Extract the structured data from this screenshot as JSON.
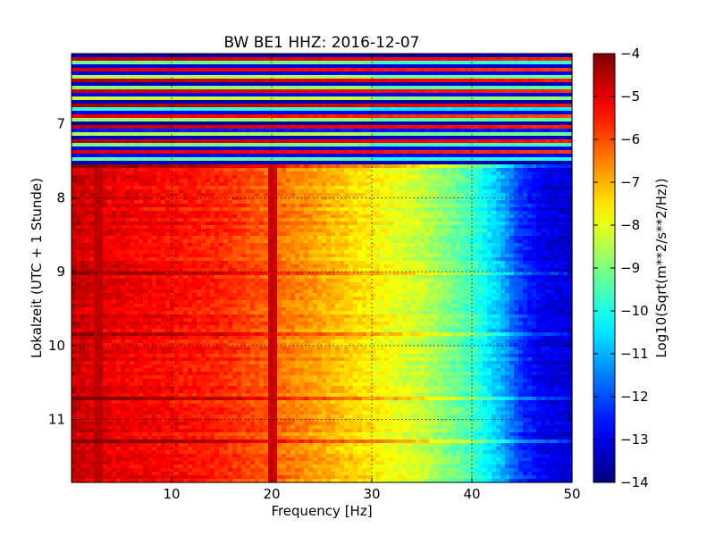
{
  "chart_data": {
    "type": "heatmap",
    "title": "BW BE1 HHZ: 2016-12-07",
    "xlabel": "Frequency [Hz]",
    "ylabel": "Lokalzeit (UTC + 1 Stunde)",
    "xlim": [
      0,
      50
    ],
    "ylim": [
      11.85,
      6.05
    ],
    "x_ticks": [
      10,
      20,
      30,
      40,
      50
    ],
    "y_ticks": [
      7,
      8,
      9,
      10,
      11
    ],
    "grid": true,
    "colorbar": {
      "label": "Log10(Sqrt(m**2/s**2/Hz))",
      "range": [
        -14,
        -4
      ],
      "ticks": [
        -4,
        -5,
        -6,
        -7,
        -8,
        -9,
        -10,
        -11,
        -12,
        -13,
        -14
      ],
      "colormap": "jet"
    },
    "regions": [
      {
        "time_range": [
          6.05,
          7.55
        ],
        "description_values": "banded: rows alternate between about -4.5 (dark red) and -13.5 (dark blue), mid levels about -9 (cyan-green) toward 50 Hz"
      },
      {
        "time_range": [
          7.55,
          11.85
        ],
        "profile": [
          {
            "freq": 0,
            "value": -4.5
          },
          {
            "freq": 0.5,
            "value": -4.7
          },
          {
            "freq": 3,
            "value": -5.0
          },
          {
            "freq": 10,
            "value": -5.3
          },
          {
            "freq": 15,
            "value": -5.6
          },
          {
            "freq": 20,
            "value": -6.2
          },
          {
            "freq": 25,
            "value": -6.9
          },
          {
            "freq": 30,
            "value": -7.6
          },
          {
            "freq": 35,
            "value": -8.3
          },
          {
            "freq": 40,
            "value": -9.6
          },
          {
            "freq": 43,
            "value": -11.0
          },
          {
            "freq": 45,
            "value": -12.3
          },
          {
            "freq": 47,
            "value": -12.9
          },
          {
            "freq": 50,
            "value": -13.2
          }
        ],
        "line_features": [
          {
            "freq": 20,
            "value": -4.8
          },
          {
            "freq": 2.5,
            "value": -4.6
          }
        ]
      }
    ]
  }
}
